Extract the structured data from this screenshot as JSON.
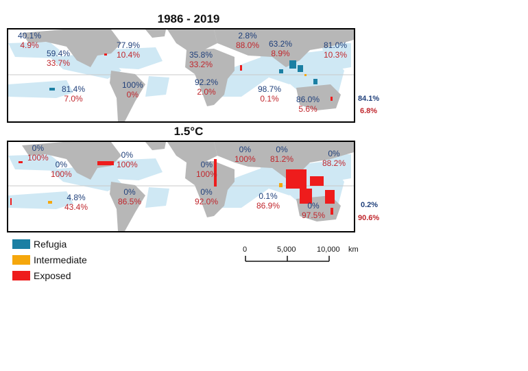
{
  "panels": [
    {
      "title": "1986 - 2019",
      "total": {
        "refugia": "84.1%",
        "exposed": "6.8%"
      },
      "regions": [
        {
          "refugia": "40.1%",
          "exposed": "4.9%"
        },
        {
          "refugia": "59.4%",
          "exposed": "33.7%"
        },
        {
          "refugia": "77.9%",
          "exposed": "10.4%"
        },
        {
          "refugia": "35.8%",
          "exposed": "33.2%"
        },
        {
          "refugia": "2.8%",
          "exposed": "88.0%"
        },
        {
          "refugia": "63.2%",
          "exposed": "8.9%"
        },
        {
          "refugia": "81.0%",
          "exposed": "10.3%"
        },
        {
          "refugia": "81.4%",
          "exposed": "7.0%"
        },
        {
          "refugia": "100%",
          "exposed": "0%"
        },
        {
          "refugia": "92.2%",
          "exposed": "2.0%"
        },
        {
          "refugia": "98.7%",
          "exposed": "0.1%"
        },
        {
          "refugia": "86.0%",
          "exposed": "5.6%"
        }
      ]
    },
    {
      "title": "1.5°C",
      "total": {
        "refugia": "0.2%",
        "exposed": "90.6%"
      },
      "regions": [
        {
          "refugia": "0%",
          "exposed": "100%"
        },
        {
          "refugia": "0%",
          "exposed": "100%"
        },
        {
          "refugia": "0%",
          "exposed": "100%"
        },
        {
          "refugia": "0%",
          "exposed": "100%"
        },
        {
          "refugia": "0%",
          "exposed": "100%"
        },
        {
          "refugia": "0%",
          "exposed": "81.2%"
        },
        {
          "refugia": "0%",
          "exposed": "88.2%"
        },
        {
          "refugia": "4.8%",
          "exposed": "43.4%"
        },
        {
          "refugia": "0%",
          "exposed": "86.5%"
        },
        {
          "refugia": "0%",
          "exposed": "92.0%"
        },
        {
          "refugia": "0.1%",
          "exposed": "86.9%"
        },
        {
          "refugia": "0%",
          "exposed": "97.5%"
        }
      ]
    }
  ],
  "legend": [
    {
      "label": "Refugia",
      "color": "#1b7fa3"
    },
    {
      "label": "Intermediate",
      "color": "#f5a70c"
    },
    {
      "label": "Exposed",
      "color": "#ee1c1c"
    }
  ],
  "scale_bar": {
    "ticks": [
      "0",
      "5,000",
      "10,000"
    ],
    "unit": "km"
  },
  "colors": {
    "land": "#b7b7b7",
    "reef_region": "#cfe8f4",
    "refugia_text": "#1f3f7a",
    "exposed_text": "#c0262c"
  }
}
